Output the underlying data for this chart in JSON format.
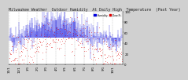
{
  "title": "Milwaukee Weather  Outdoor Humidity  At Daily High  Temperature  (Past Year)",
  "bg_color": "#d0d0d0",
  "plot_bg": "#ffffff",
  "bar_color": "#0000dd",
  "dot_color": "#dd0000",
  "legend_label_bar": "Humidity",
  "legend_label_dot": "Dew Pt",
  "ylim": [
    0,
    100
  ],
  "yticks": [
    0,
    20,
    40,
    60,
    80,
    100
  ],
  "n_points": 365,
  "grid_color": "#888888",
  "title_fontsize": 3.5,
  "tick_fontsize": 2.8,
  "baseline": 50
}
